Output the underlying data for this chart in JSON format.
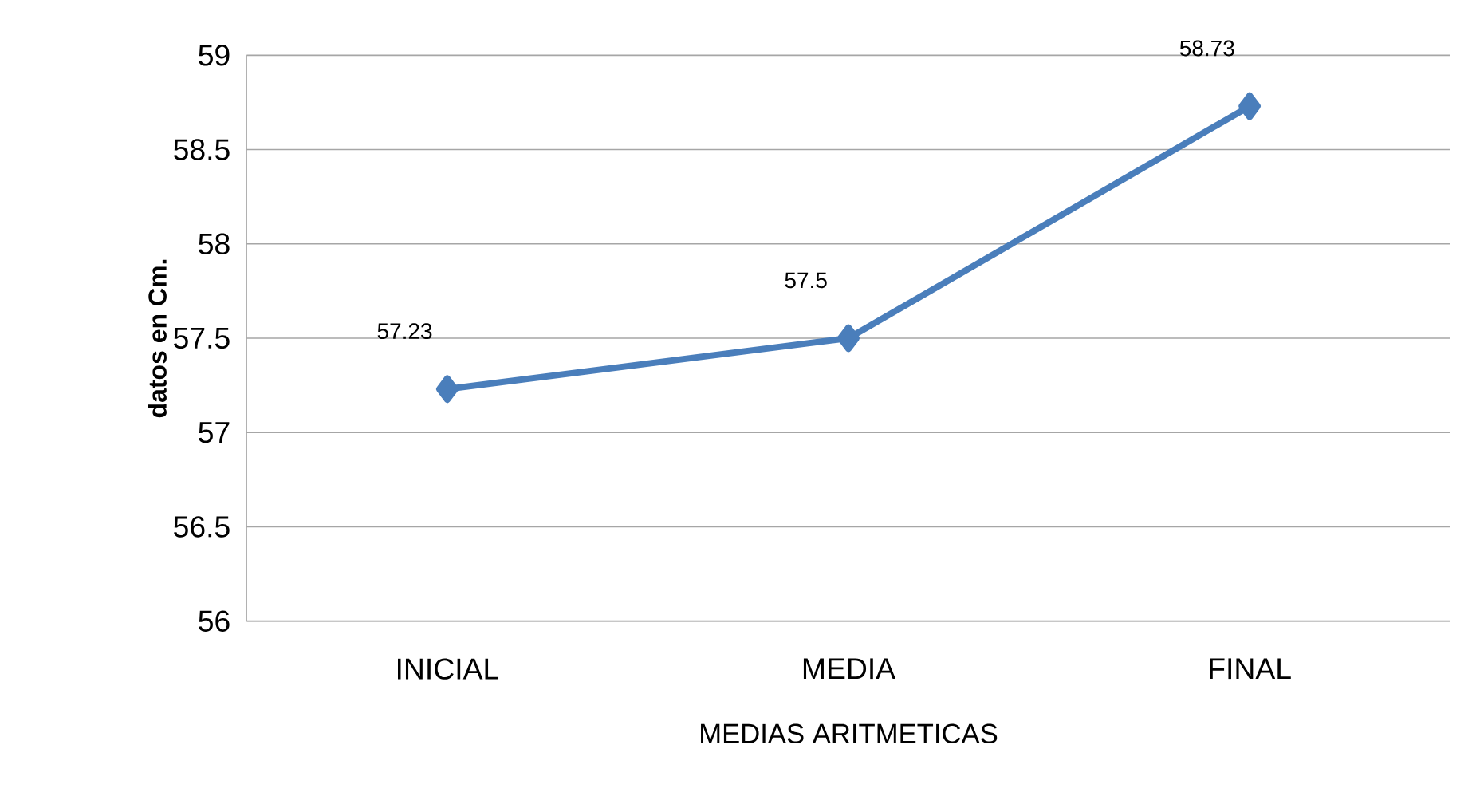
{
  "chart_data": {
    "type": "line",
    "xlabel": "MEDIAS ARITMETICAS",
    "ylabel": "datos en Cm.",
    "categories": [
      "INICIAL",
      "MEDIA",
      "FINAL"
    ],
    "series": [
      {
        "color": "#4a7ebb",
        "values": [
          57.23,
          57.5,
          58.73
        ]
      }
    ],
    "ylim": [
      56,
      59
    ],
    "yticks": [
      56,
      56.5,
      57,
      57.5,
      58,
      58.5,
      59
    ],
    "grid": "y",
    "marker": "diamond",
    "line_style": "solid",
    "data_labels": true
  }
}
